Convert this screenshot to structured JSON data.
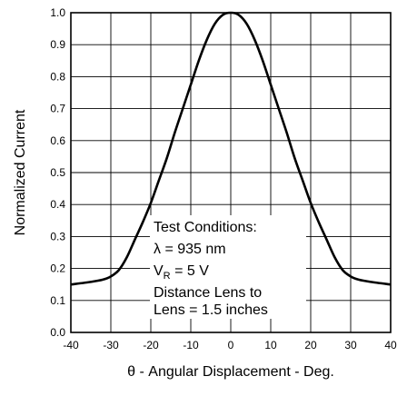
{
  "chart_data": {
    "type": "line",
    "title": "",
    "xlabel": "θ - Angular Displacement - Deg.",
    "ylabel": "Normalized Current",
    "xlim": [
      -40,
      40
    ],
    "ylim": [
      0.0,
      1.0
    ],
    "grid": true,
    "x_ticks": [
      "-40",
      "-30",
      "-20",
      "-10",
      "0",
      "10",
      "20",
      "30",
      "40"
    ],
    "y_ticks": [
      "0.0",
      "0.1",
      "0.2",
      "0.3",
      "0.4",
      "0.5",
      "0.6",
      "0.7",
      "0.8",
      "0.9",
      "1.0"
    ],
    "series": [
      {
        "name": "",
        "x": [
          -40,
          -35,
          -32,
          -30,
          -28,
          -26,
          -24,
          -22,
          -20,
          -18,
          -16,
          -14,
          -12,
          -10,
          -8,
          -6,
          -4,
          -2,
          0,
          2,
          4,
          6,
          8,
          10,
          12,
          14,
          16,
          18,
          20,
          22,
          24,
          26,
          28,
          30,
          32,
          35,
          40
        ],
        "y": [
          0.15,
          0.158,
          0.165,
          0.175,
          0.195,
          0.235,
          0.29,
          0.345,
          0.405,
          0.475,
          0.545,
          0.625,
          0.7,
          0.775,
          0.85,
          0.915,
          0.965,
          0.993,
          1.0,
          0.993,
          0.965,
          0.915,
          0.85,
          0.775,
          0.7,
          0.625,
          0.545,
          0.475,
          0.405,
          0.345,
          0.29,
          0.235,
          0.195,
          0.175,
          0.165,
          0.158,
          0.15
        ]
      }
    ],
    "annotation": {
      "lines": [
        "Test Conditions:",
        "λ = 935 nm",
        "V",
        "R",
        " = 5 V",
        "Distance Lens to",
        "Lens = 1.5 inches"
      ]
    }
  }
}
